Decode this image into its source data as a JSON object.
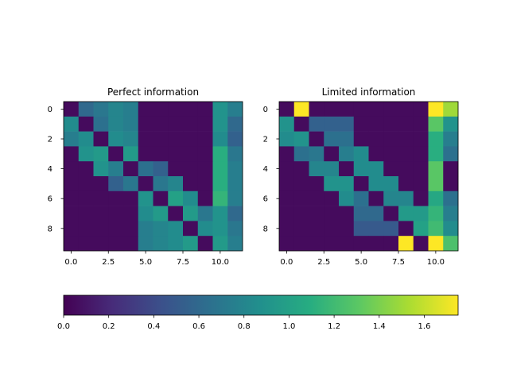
{
  "chart_data": {
    "type": "heatmap",
    "colormap": "viridis",
    "colorbar": {
      "min": 0.0,
      "max": 1.75,
      "ticks": [
        0.0,
        0.2,
        0.4,
        0.6,
        0.8,
        1.0,
        1.2,
        1.4,
        1.6
      ],
      "tick_labels": [
        "0.0",
        "0.2",
        "0.4",
        "0.6",
        "0.8",
        "1.0",
        "1.2",
        "1.4",
        "1.6"
      ],
      "orientation": "horizontal"
    },
    "panels": [
      {
        "title": "Perfect information",
        "xticks": [
          0,
          2.5,
          5,
          7.5,
          10
        ],
        "xtick_labels": [
          "0.0",
          "2.5",
          "5.0",
          "7.5",
          "10.0"
        ],
        "yticks": [
          0,
          2,
          4,
          6,
          8
        ],
        "ytick_labels": [
          "0",
          "2",
          "4",
          "6",
          "8"
        ],
        "rows": 10,
        "cols": 12,
        "values": [
          [
            0.05,
            0.6,
            0.7,
            0.8,
            0.75,
            0.05,
            0.05,
            0.05,
            0.05,
            0.05,
            0.9,
            0.75
          ],
          [
            0.85,
            0.05,
            0.65,
            0.8,
            0.75,
            0.05,
            0.05,
            0.05,
            0.05,
            0.05,
            0.9,
            0.6
          ],
          [
            0.75,
            0.85,
            0.05,
            0.85,
            0.8,
            0.05,
            0.05,
            0.05,
            0.05,
            0.05,
            0.85,
            0.55
          ],
          [
            0.05,
            0.9,
            0.95,
            0.05,
            0.95,
            0.05,
            0.05,
            0.05,
            0.05,
            0.05,
            1.1,
            0.7
          ],
          [
            0.05,
            0.05,
            0.9,
            0.75,
            0.05,
            0.65,
            0.55,
            0.05,
            0.05,
            0.05,
            1.1,
            0.75
          ],
          [
            0.05,
            0.05,
            0.05,
            0.55,
            0.7,
            0.05,
            0.7,
            0.8,
            0.05,
            0.05,
            1.1,
            0.75
          ],
          [
            0.05,
            0.05,
            0.05,
            0.05,
            0.05,
            0.9,
            0.05,
            1.0,
            0.85,
            0.05,
            1.15,
            0.75
          ],
          [
            0.05,
            0.05,
            0.05,
            0.05,
            0.05,
            0.85,
            0.95,
            0.05,
            0.95,
            0.7,
            0.9,
            0.6
          ],
          [
            0.05,
            0.05,
            0.05,
            0.05,
            0.05,
            0.75,
            0.8,
            0.85,
            0.05,
            0.85,
            0.9,
            0.7
          ],
          [
            0.05,
            0.05,
            0.05,
            0.05,
            0.05,
            0.75,
            0.8,
            0.85,
            0.95,
            0.05,
            0.95,
            0.75
          ]
        ]
      },
      {
        "title": "Limited information",
        "xticks": [
          0,
          2.5,
          5,
          7.5,
          10
        ],
        "xtick_labels": [
          "0.0",
          "2.5",
          "5.0",
          "7.5",
          "10.0"
        ],
        "yticks": [
          0,
          2,
          4,
          6,
          8
        ],
        "ytick_labels": [
          "0",
          "2",
          "4",
          "6",
          "8"
        ],
        "rows": 10,
        "cols": 12,
        "values": [
          [
            0.05,
            1.75,
            0.05,
            0.05,
            0.05,
            0.05,
            0.05,
            0.05,
            0.05,
            0.05,
            1.75,
            1.5
          ],
          [
            0.9,
            0.05,
            0.55,
            0.55,
            0.55,
            0.05,
            0.05,
            0.05,
            0.05,
            0.05,
            1.3,
            0.9
          ],
          [
            0.85,
            0.9,
            0.05,
            0.65,
            0.65,
            0.05,
            0.05,
            0.05,
            0.05,
            0.05,
            1.1,
            0.75
          ],
          [
            0.05,
            0.65,
            0.7,
            0.05,
            0.75,
            0.85,
            0.05,
            0.05,
            0.05,
            0.05,
            1.1,
            0.65
          ],
          [
            0.05,
            0.05,
            0.8,
            0.8,
            0.05,
            0.85,
            0.85,
            0.05,
            0.05,
            0.05,
            1.3,
            0.05
          ],
          [
            0.05,
            0.05,
            0.05,
            0.9,
            0.9,
            0.05,
            0.85,
            0.85,
            0.05,
            0.05,
            1.3,
            0.05
          ],
          [
            0.05,
            0.05,
            0.05,
            0.05,
            0.85,
            0.65,
            0.05,
            0.8,
            0.8,
            0.05,
            1.05,
            0.65
          ],
          [
            0.05,
            0.05,
            0.05,
            0.05,
            0.05,
            0.6,
            0.6,
            0.05,
            0.95,
            0.95,
            1.15,
            0.75
          ],
          [
            0.05,
            0.05,
            0.05,
            0.05,
            0.05,
            0.5,
            0.5,
            0.5,
            0.05,
            1.0,
            1.2,
            0.85
          ],
          [
            0.05,
            0.05,
            0.05,
            0.05,
            0.05,
            0.05,
            0.05,
            0.05,
            1.75,
            0.05,
            1.75,
            1.25
          ]
        ]
      }
    ]
  }
}
